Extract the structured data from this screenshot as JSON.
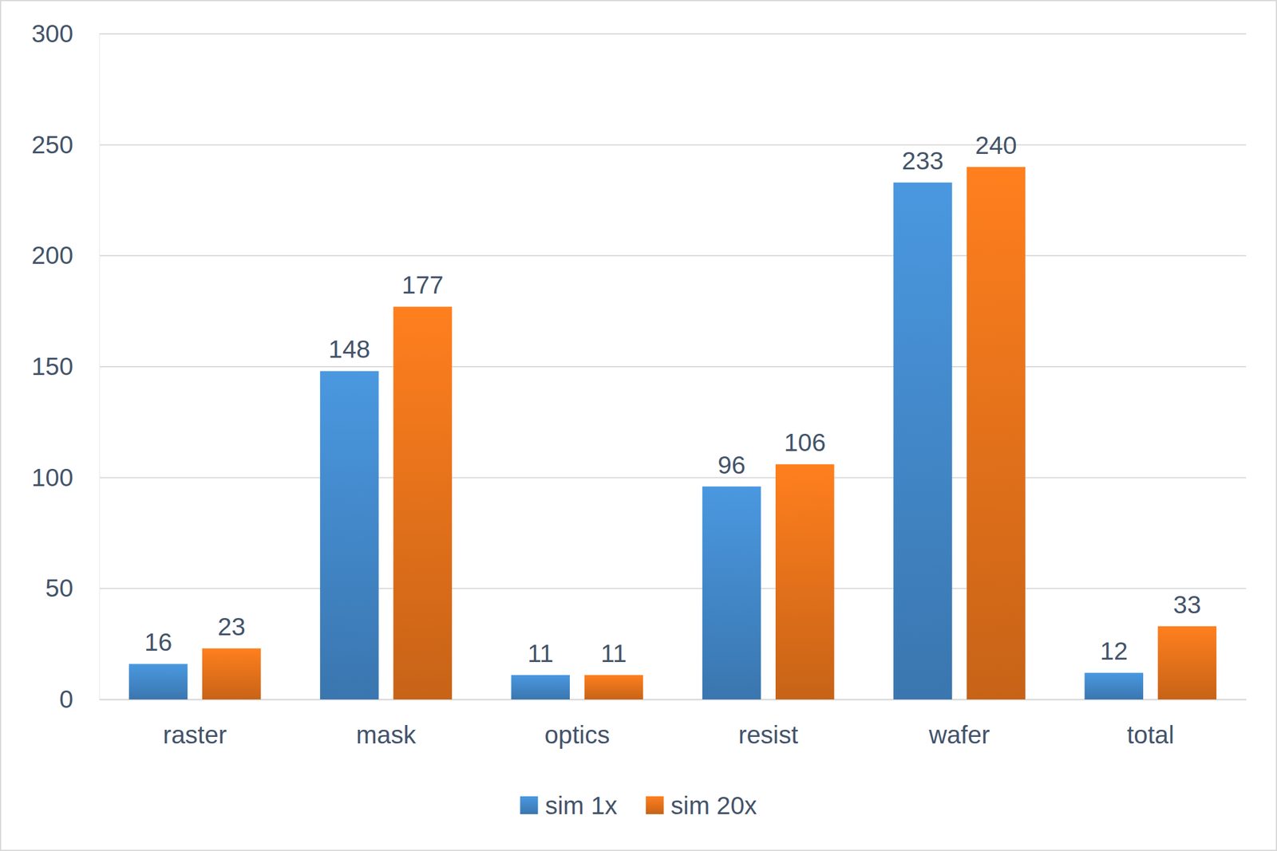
{
  "chart_data": {
    "type": "bar",
    "categories": [
      "raster",
      "mask",
      "optics",
      "resist",
      "wafer",
      "total"
    ],
    "series": [
      {
        "name": "sim 1x",
        "color": "#4a98e0",
        "values": [
          16,
          148,
          11,
          96,
          233,
          12
        ]
      },
      {
        "name": "sim 20x",
        "color": "#ff7f1e",
        "values": [
          23,
          177,
          11,
          106,
          240,
          33
        ]
      }
    ],
    "ylim": [
      0,
      300
    ],
    "yticks": [
      0,
      50,
      100,
      150,
      200,
      250,
      300
    ],
    "grid": true,
    "data_labels": true,
    "legend": "bottom"
  }
}
